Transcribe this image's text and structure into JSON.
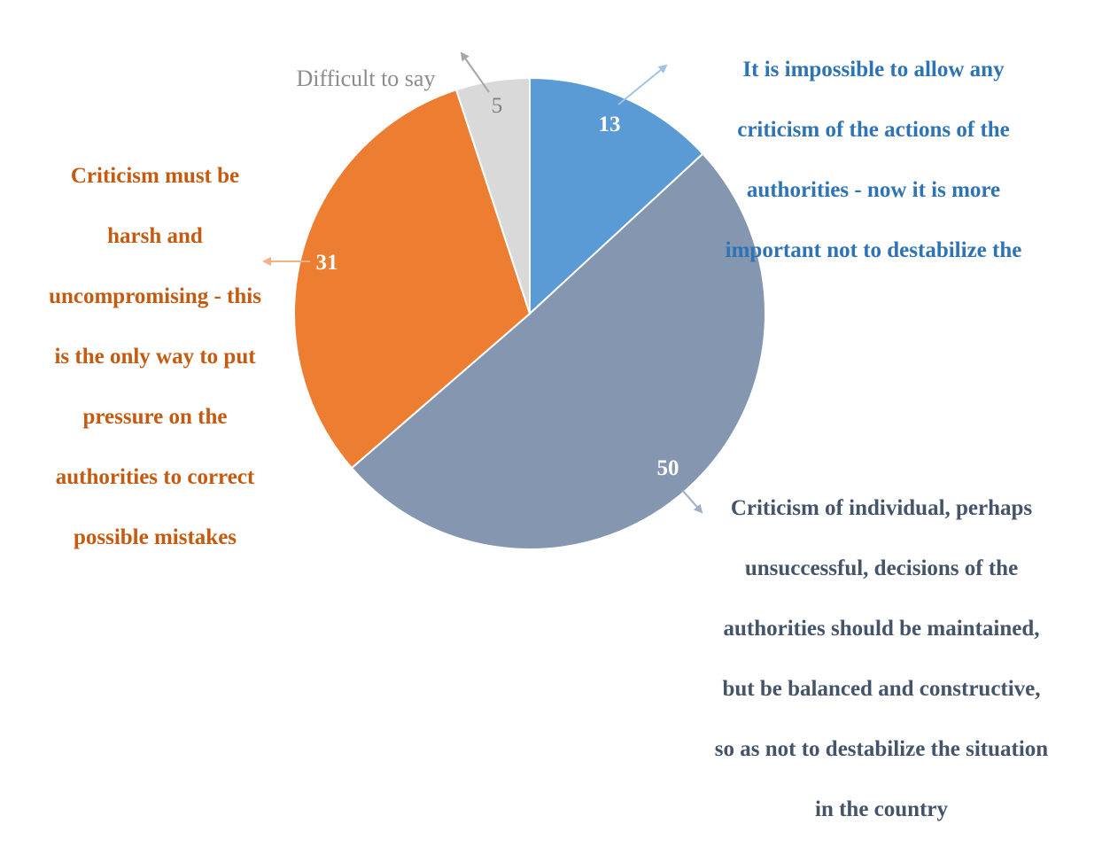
{
  "chart_data": {
    "type": "pie",
    "start_angle_deg": 0,
    "direction": "clockwise",
    "slices": [
      {
        "value": 13,
        "value_label": "13",
        "color": "#5b9bd5",
        "label_color": "#2e74b5",
        "label_lines": [
          "It is impossible to allow any",
          "criticism of the actions of the",
          "authorities - now it is more",
          "important not to destabilize the"
        ]
      },
      {
        "value": 50,
        "value_label": "50",
        "color": "#8496b0",
        "label_color": "#44546a",
        "label_lines": [
          "Criticism of individual, perhaps",
          "unsuccessful, decisions of the",
          "authorities should be maintained,",
          "but be balanced and constructive,",
          "so as not to destabilize the situation",
          "in the country"
        ]
      },
      {
        "value": 31,
        "value_label": "31",
        "color": "#ed7d31",
        "label_color": "#c55a11",
        "label_lines": [
          "Criticism must be",
          "harsh and",
          "uncompromising - this",
          "is the only way to put",
          "pressure on the",
          "authorities to correct",
          "possible mistakes"
        ]
      },
      {
        "value": 5,
        "value_label": "5",
        "color": "#d9d9d9",
        "label_color": "#8c8c8c",
        "label_lines": [
          "Difficult to say"
        ]
      }
    ]
  }
}
